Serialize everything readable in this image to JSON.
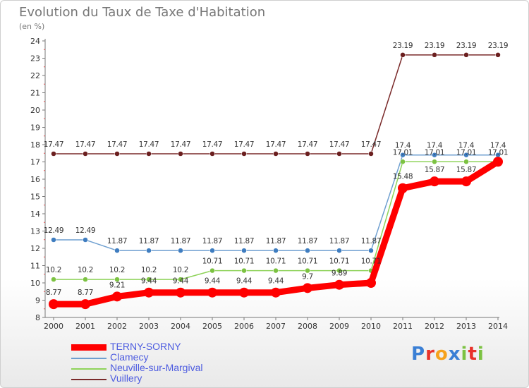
{
  "title": "Evolution du Taux de Taxe d'Habitation",
  "subtitle": "(en %)",
  "chart_data": {
    "type": "line",
    "title": "Evolution du Taux de Taxe d'Habitation",
    "ylabel": "(en %)",
    "xlabel": "",
    "x": [
      "2000",
      "2001",
      "2002",
      "2003",
      "2004",
      "2005",
      "2006",
      "2007",
      "2008",
      "2009",
      "2010",
      "2011",
      "2012",
      "2013",
      "2014"
    ],
    "ylim": [
      8,
      24
    ],
    "yticks": [
      "8",
      "9",
      "10",
      "11",
      "12",
      "13",
      "14",
      "15",
      "16",
      "17",
      "18",
      "19",
      "20",
      "21",
      "22",
      "23",
      "24"
    ],
    "grid": false,
    "legend_position": "bottom-left",
    "series": [
      {
        "name": "TERNY-SORNY",
        "color": "#ff0000",
        "values": [
          8.77,
          8.77,
          9.21,
          9.44,
          9.44,
          9.44,
          9.44,
          9.44,
          9.7,
          9.89,
          10.0,
          15.48,
          15.87,
          15.87,
          17.01
        ],
        "labels": [
          "8.77",
          "8.77",
          "9.21",
          "9.44",
          "9.44",
          "9.44",
          "9.44",
          "9.44",
          "9.7",
          "9.89",
          "",
          "15.48",
          "15.87",
          "15.87",
          ""
        ]
      },
      {
        "name": "Clamecy",
        "color": "#6e9fd0",
        "values": [
          12.49,
          12.49,
          11.87,
          11.87,
          11.87,
          11.87,
          11.87,
          11.87,
          11.87,
          11.87,
          11.87,
          17.4,
          17.4,
          17.4,
          17.4
        ],
        "labels": [
          "12.49",
          "12.49",
          "11.87",
          "11.87",
          "11.87",
          "11.87",
          "11.87",
          "11.87",
          "11.87",
          "11.87",
          "11.87",
          "17.4",
          "17.4",
          "17.4",
          "17.4"
        ]
      },
      {
        "name": "Neuville-sur-Margival",
        "color": "#8fd35a",
        "values": [
          10.2,
          10.2,
          10.2,
          10.2,
          10.2,
          10.71,
          10.71,
          10.71,
          10.71,
          10.71,
          10.71,
          17.01,
          17.01,
          17.01,
          17.01
        ],
        "labels": [
          "10.2",
          "10.2",
          "10.2",
          "10.2",
          "10.2",
          "10.71",
          "10.71",
          "10.71",
          "10.71",
          "10.71",
          "10.71",
          "17.01",
          "17.01",
          "17.01",
          "17.01"
        ]
      },
      {
        "name": "Vuillery",
        "color": "#7a2a2a",
        "values": [
          17.47,
          17.47,
          17.47,
          17.47,
          17.47,
          17.47,
          17.47,
          17.47,
          17.47,
          17.47,
          17.47,
          23.19,
          23.19,
          23.19,
          23.19
        ],
        "labels": [
          "17.47",
          "17.47",
          "17.47",
          "17.47",
          "17.47",
          "17.47",
          "17.47",
          "17.47",
          "17.47",
          "17.47",
          "17.47",
          "23.19",
          "23.19",
          "23.19",
          "23.19"
        ]
      }
    ]
  },
  "logo": {
    "letters": [
      {
        "ch": "P",
        "color": "#3a7fd5"
      },
      {
        "ch": "r",
        "color": "#e8322b"
      },
      {
        "ch": "o",
        "color": "#f6a21c"
      },
      {
        "ch": "x",
        "color": "#3a7fd5"
      },
      {
        "ch": "i",
        "color": "#7cc242"
      },
      {
        "ch": "t",
        "color": "#e8322b"
      },
      {
        "ch": "i",
        "color": "#7cc242"
      }
    ]
  }
}
